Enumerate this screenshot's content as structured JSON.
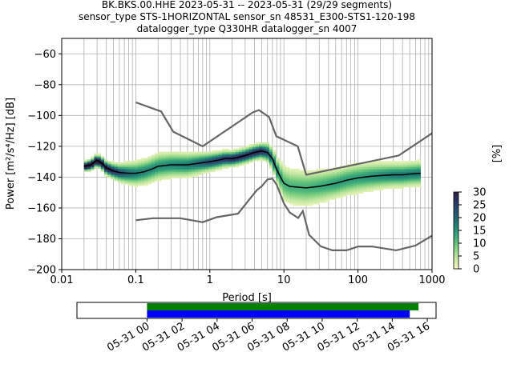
{
  "chart_data": [
    {
      "type": "heatmap",
      "title_lines": [
        "BK.BKS.00.HHE   2023-05-31 -- 2023-05-31  (29/29 segments)",
        "sensor_type STS-1HORIZONTAL sensor_sn 48531_E300-STS1-120-198",
        "datalogger_type Q330HR datalogger_sn 4007"
      ],
      "xlabel": "Period [s]",
      "ylabel": "Power [m²/s⁴/Hz] [dB]",
      "x_scale": "log",
      "xlim": [
        0.01,
        1000
      ],
      "ylim": [
        -200,
        -50
      ],
      "x_ticks": [
        {
          "value": 0.01,
          "label": "0.01"
        },
        {
          "value": 0.1,
          "label": "0.1"
        },
        {
          "value": 1,
          "label": "1"
        },
        {
          "value": 10,
          "label": "10"
        },
        {
          "value": 100,
          "label": "100"
        },
        {
          "value": 1000,
          "label": "1000"
        }
      ],
      "y_ticks": [
        {
          "value": -60,
          "label": "−60"
        },
        {
          "value": -80,
          "label": "−80"
        },
        {
          "value": -100,
          "label": "−100"
        },
        {
          "value": -120,
          "label": "−120"
        },
        {
          "value": -140,
          "label": "−140"
        },
        {
          "value": -160,
          "label": "−160"
        },
        {
          "value": -180,
          "label": "−180"
        },
        {
          "value": -200,
          "label": "−200"
        }
      ],
      "grid": true,
      "colorbar": {
        "label": "[%]",
        "min": 0,
        "max": 30,
        "ticks": [
          "0",
          "5",
          "10",
          "15",
          "20",
          "25",
          "30"
        ],
        "colors": [
          "#fafcc0",
          "#c4e6a3",
          "#7ccf7e",
          "#3aa97a",
          "#1f8074",
          "#285a73",
          "#2c3a6c",
          "#2d1e3e"
        ]
      },
      "model_curve_color": "#666666",
      "high_noise_model": [
        [
          0.1,
          -91.5
        ],
        [
          0.22,
          -97.4
        ],
        [
          0.32,
          -110.5
        ],
        [
          0.8,
          -120
        ],
        [
          3.8,
          -98
        ],
        [
          4.6,
          -96.5
        ],
        [
          6.3,
          -101
        ],
        [
          7.9,
          -113.5
        ],
        [
          15.4,
          -120
        ],
        [
          20,
          -138.5
        ],
        [
          354.8,
          -126
        ],
        [
          1000,
          -111.5
        ]
      ],
      "low_noise_model": [
        [
          0.1,
          -168
        ],
        [
          0.17,
          -166.7
        ],
        [
          0.4,
          -166.7
        ],
        [
          0.8,
          -169.2
        ],
        [
          1.24,
          -166
        ],
        [
          2.4,
          -163.7
        ],
        [
          4.3,
          -148.5
        ],
        [
          5,
          -146
        ],
        [
          6,
          -141.5
        ],
        [
          7,
          -141
        ],
        [
          8,
          -145
        ],
        [
          10,
          -157
        ],
        [
          12,
          -163
        ],
        [
          15.6,
          -166.5
        ],
        [
          18,
          -162
        ],
        [
          21.9,
          -177.5
        ],
        [
          31.6,
          -185
        ],
        [
          45,
          -187.5
        ],
        [
          70,
          -187.5
        ],
        [
          101,
          -185
        ],
        [
          154,
          -185
        ],
        [
          328,
          -187.5
        ],
        [
          600,
          -184.4
        ],
        [
          1000,
          -178
        ]
      ],
      "mode_color": "#000000",
      "mode_curve": [
        [
          0.02,
          -133
        ],
        [
          0.025,
          -132
        ],
        [
          0.028,
          -130
        ],
        [
          0.03,
          -129
        ],
        [
          0.035,
          -131
        ],
        [
          0.04,
          -134
        ],
        [
          0.05,
          -136
        ],
        [
          0.06,
          -137
        ],
        [
          0.08,
          -137.5
        ],
        [
          0.1,
          -137.5
        ],
        [
          0.13,
          -136.5
        ],
        [
          0.16,
          -135
        ],
        [
          0.2,
          -133
        ],
        [
          0.3,
          -132
        ],
        [
          0.5,
          -132
        ],
        [
          0.7,
          -131
        ],
        [
          1,
          -130
        ],
        [
          1.3,
          -129
        ],
        [
          1.6,
          -128
        ],
        [
          2,
          -128
        ],
        [
          2.5,
          -127
        ],
        [
          3,
          -126
        ],
        [
          4,
          -124
        ],
        [
          5,
          -123
        ],
        [
          6,
          -124
        ],
        [
          7,
          -128
        ],
        [
          8,
          -135
        ],
        [
          9,
          -140
        ],
        [
          10,
          -144
        ],
        [
          12,
          -146
        ],
        [
          15,
          -146.5
        ],
        [
          20,
          -147
        ],
        [
          30,
          -146
        ],
        [
          50,
          -144
        ],
        [
          70,
          -142
        ],
        [
          100,
          -140.5
        ],
        [
          150,
          -139.5
        ],
        [
          200,
          -139
        ],
        [
          300,
          -138.5
        ],
        [
          400,
          -138.5
        ],
        [
          500,
          -138
        ],
        [
          700,
          -137.5
        ]
      ],
      "pdf_spread_db": [
        [
          0.02,
          1.5
        ],
        [
          0.05,
          2.5
        ],
        [
          0.1,
          4
        ],
        [
          0.2,
          4.5
        ],
        [
          0.5,
          4
        ],
        [
          1,
          3
        ],
        [
          2,
          2.5
        ],
        [
          5,
          2.5
        ],
        [
          8,
          4
        ],
        [
          10,
          6
        ],
        [
          20,
          6
        ],
        [
          50,
          5
        ],
        [
          100,
          5
        ],
        [
          300,
          4
        ],
        [
          700,
          4
        ]
      ]
    },
    {
      "type": "bar",
      "role": "data-availability",
      "x_ticks": [
        "05-31 00",
        "05-31 02",
        "05-31 04",
        "05-31 06",
        "05-31 08",
        "05-31 10",
        "05-31 12",
        "05-31 14",
        "05-31 16"
      ],
      "xlim_hours": [
        -4,
        16.5
      ],
      "series": [
        {
          "color": "#008000",
          "start_hour": 0,
          "end_hour": 15.5
        },
        {
          "color": "#0000ff",
          "start_hour": 0,
          "end_hour": 15.0
        }
      ]
    }
  ]
}
